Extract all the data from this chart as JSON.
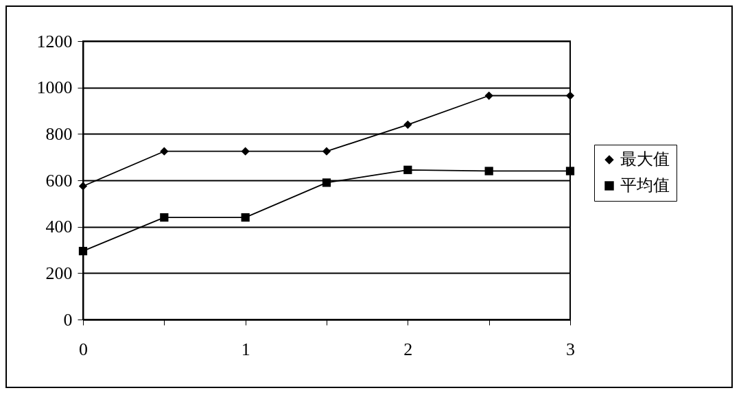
{
  "chart_data": {
    "type": "line",
    "x": [
      0,
      0.5,
      1,
      1.5,
      2,
      2.5,
      3
    ],
    "series": [
      {
        "name": "最大值",
        "color": "#000000",
        "marker": "diamond",
        "values": [
          575,
          725,
          725,
          725,
          840,
          965,
          965
        ]
      },
      {
        "name": "平均值",
        "color": "#000000",
        "marker": "square",
        "values": [
          295,
          440,
          440,
          590,
          645,
          640,
          640
        ]
      }
    ],
    "xlim": [
      0,
      3
    ],
    "xticks": [
      0,
      {
        "value": 0.5,
        "label": null
      },
      1,
      {
        "value": 1.5,
        "label": null
      },
      2,
      {
        "value": 2.5,
        "label": null
      },
      3
    ],
    "ylim": [
      0,
      1200
    ],
    "yticks": [
      0,
      200,
      400,
      600,
      800,
      1000,
      1200
    ],
    "grid": "y",
    "legend": "right",
    "line_style": "solid"
  }
}
